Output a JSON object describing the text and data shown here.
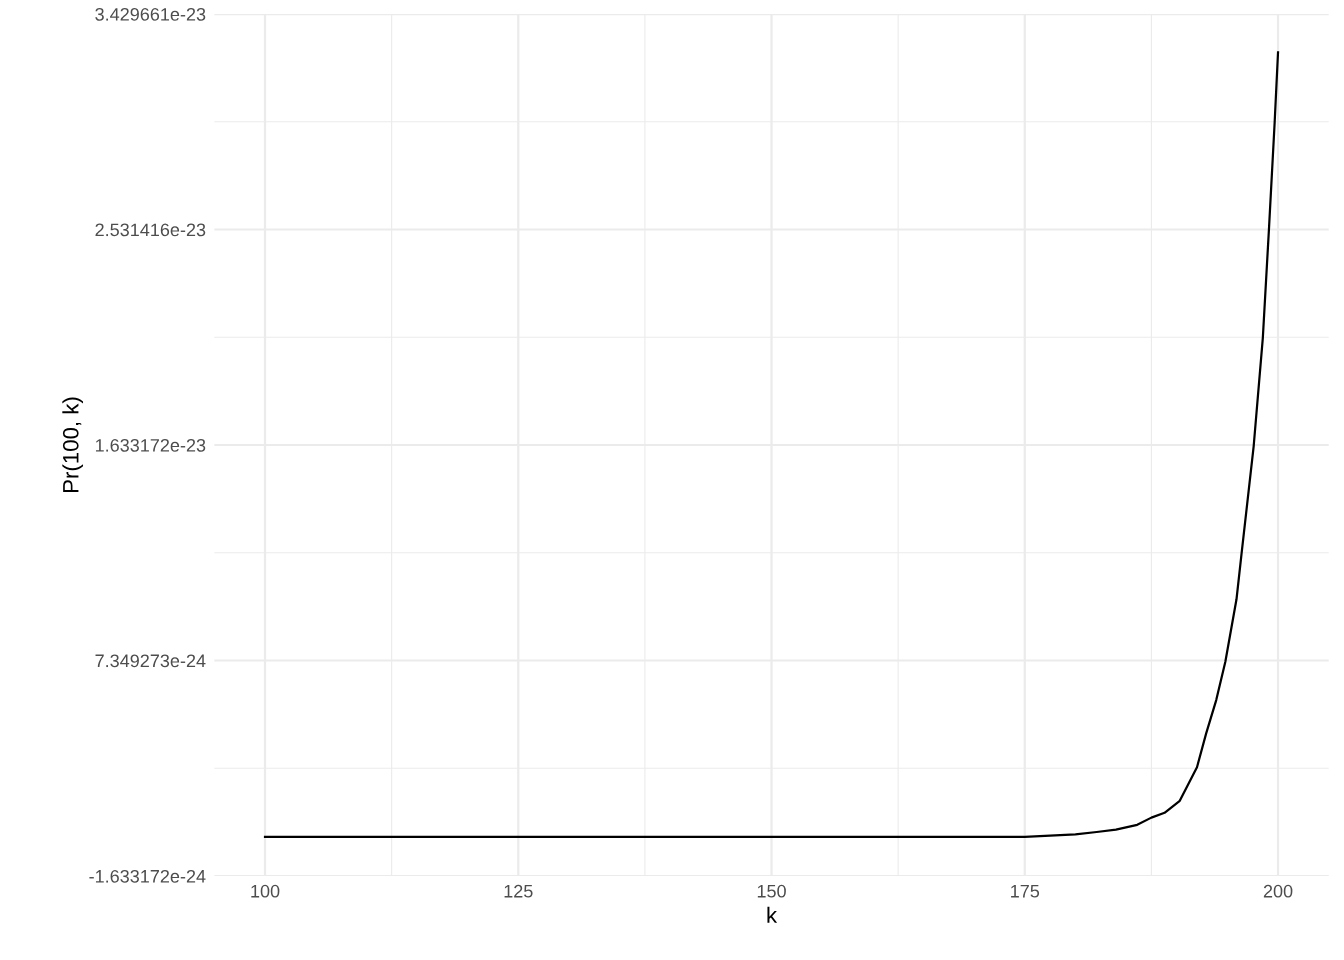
{
  "chart_data": {
    "type": "line",
    "xlabel": "k",
    "ylabel": "Pr(100, k)",
    "x": [
      100,
      160,
      175,
      180,
      182.1,
      184,
      186.1,
      187.5,
      188.8,
      190.3,
      192,
      192.9,
      193.9,
      194.8,
      195.9,
      196.4,
      197.6,
      198.5,
      199.1,
      199.67,
      200
    ],
    "series": [
      {
        "color": "#000000",
        "values": [
          0,
          0,
          0,
          1e-25,
          2e-25,
          3e-25,
          5e-25,
          8e-25,
          1e-24,
          1.5e-24,
          2.9e-24,
          4.3e-24,
          5.7e-24,
          7.3e-24,
          9.9e-24,
          1.18e-23,
          1.63e-23,
          2.08e-23,
          2.53e-23,
          2.98e-23,
          3.27e-23
        ]
      }
    ],
    "xlim": [
      95,
      205
    ],
    "xticks": [
      100,
      125,
      150,
      175,
      200
    ],
    "ylim": [
      -1.633172e-24,
      3.429661e-23
    ],
    "yticks": [
      {
        "value": -1.633172e-24,
        "label": "-1.633172e-24"
      },
      {
        "value": 7.349273e-24,
        "label": "7.349273e-24"
      },
      {
        "value": 1.633172e-23,
        "label": "1.633172e-23"
      },
      {
        "value": 2.531416e-23,
        "label": "2.531416e-23"
      },
      {
        "value": 3.429661e-23,
        "label": "3.429661e-23"
      }
    ],
    "grid": true,
    "marker": "none",
    "line_style": "solid"
  }
}
